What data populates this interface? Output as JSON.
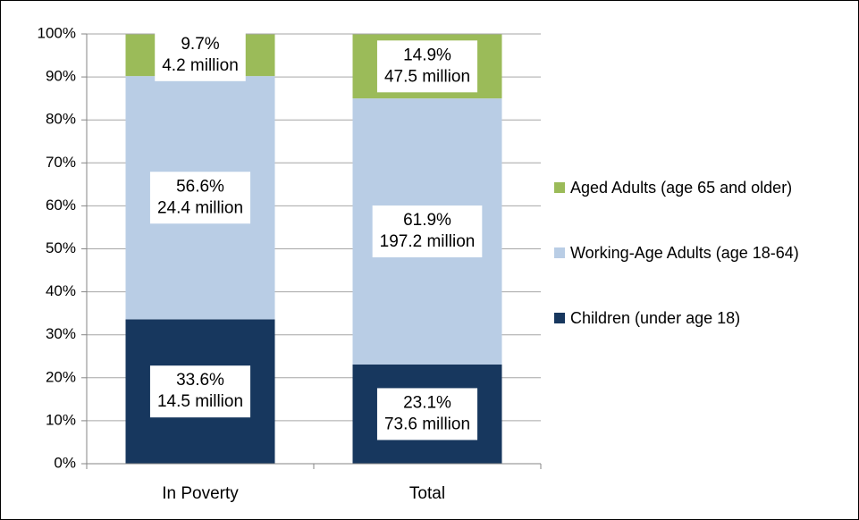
{
  "chart_data": {
    "type": "stacked-bar",
    "categories": [
      "In Poverty",
      "Total"
    ],
    "series": [
      {
        "name": "Children (under age 18)",
        "color": "#17375e",
        "values": [
          33.6,
          23.1
        ],
        "value_labels": [
          "33.6%",
          "23.1%"
        ],
        "amounts": [
          14.5,
          73.6
        ],
        "amount_labels": [
          "14.5 million",
          "73.6 million"
        ]
      },
      {
        "name": "Working-Age Adults (age 18-64)",
        "color": "#b9cde5",
        "values": [
          56.6,
          61.9
        ],
        "value_labels": [
          "56.6%",
          "61.9%"
        ],
        "amounts": [
          24.4,
          197.2
        ],
        "amount_labels": [
          "24.4 million",
          "197.2 million"
        ]
      },
      {
        "name": "Aged Adults (age 65 and older)",
        "color": "#9bbb59",
        "values": [
          9.7,
          14.9
        ],
        "value_labels": [
          "9.7%",
          "14.9%"
        ],
        "amounts": [
          4.2,
          47.5
        ],
        "amount_labels": [
          "4.2 million",
          "47.5 million"
        ]
      }
    ],
    "ylim": [
      0,
      100
    ],
    "yticks": [
      {
        "value": 0,
        "label": "0%"
      },
      {
        "value": 10,
        "label": "10%"
      },
      {
        "value": 20,
        "label": "20%"
      },
      {
        "value": 30,
        "label": "30%"
      },
      {
        "value": 40,
        "label": "40%"
      },
      {
        "value": 50,
        "label": "50%"
      },
      {
        "value": 60,
        "label": "60%"
      },
      {
        "value": 70,
        "label": "70%"
      },
      {
        "value": 80,
        "label": "80%"
      },
      {
        "value": 90,
        "label": "90%"
      },
      {
        "value": 100,
        "label": "100%"
      }
    ],
    "grid": true,
    "legend": "right"
  }
}
